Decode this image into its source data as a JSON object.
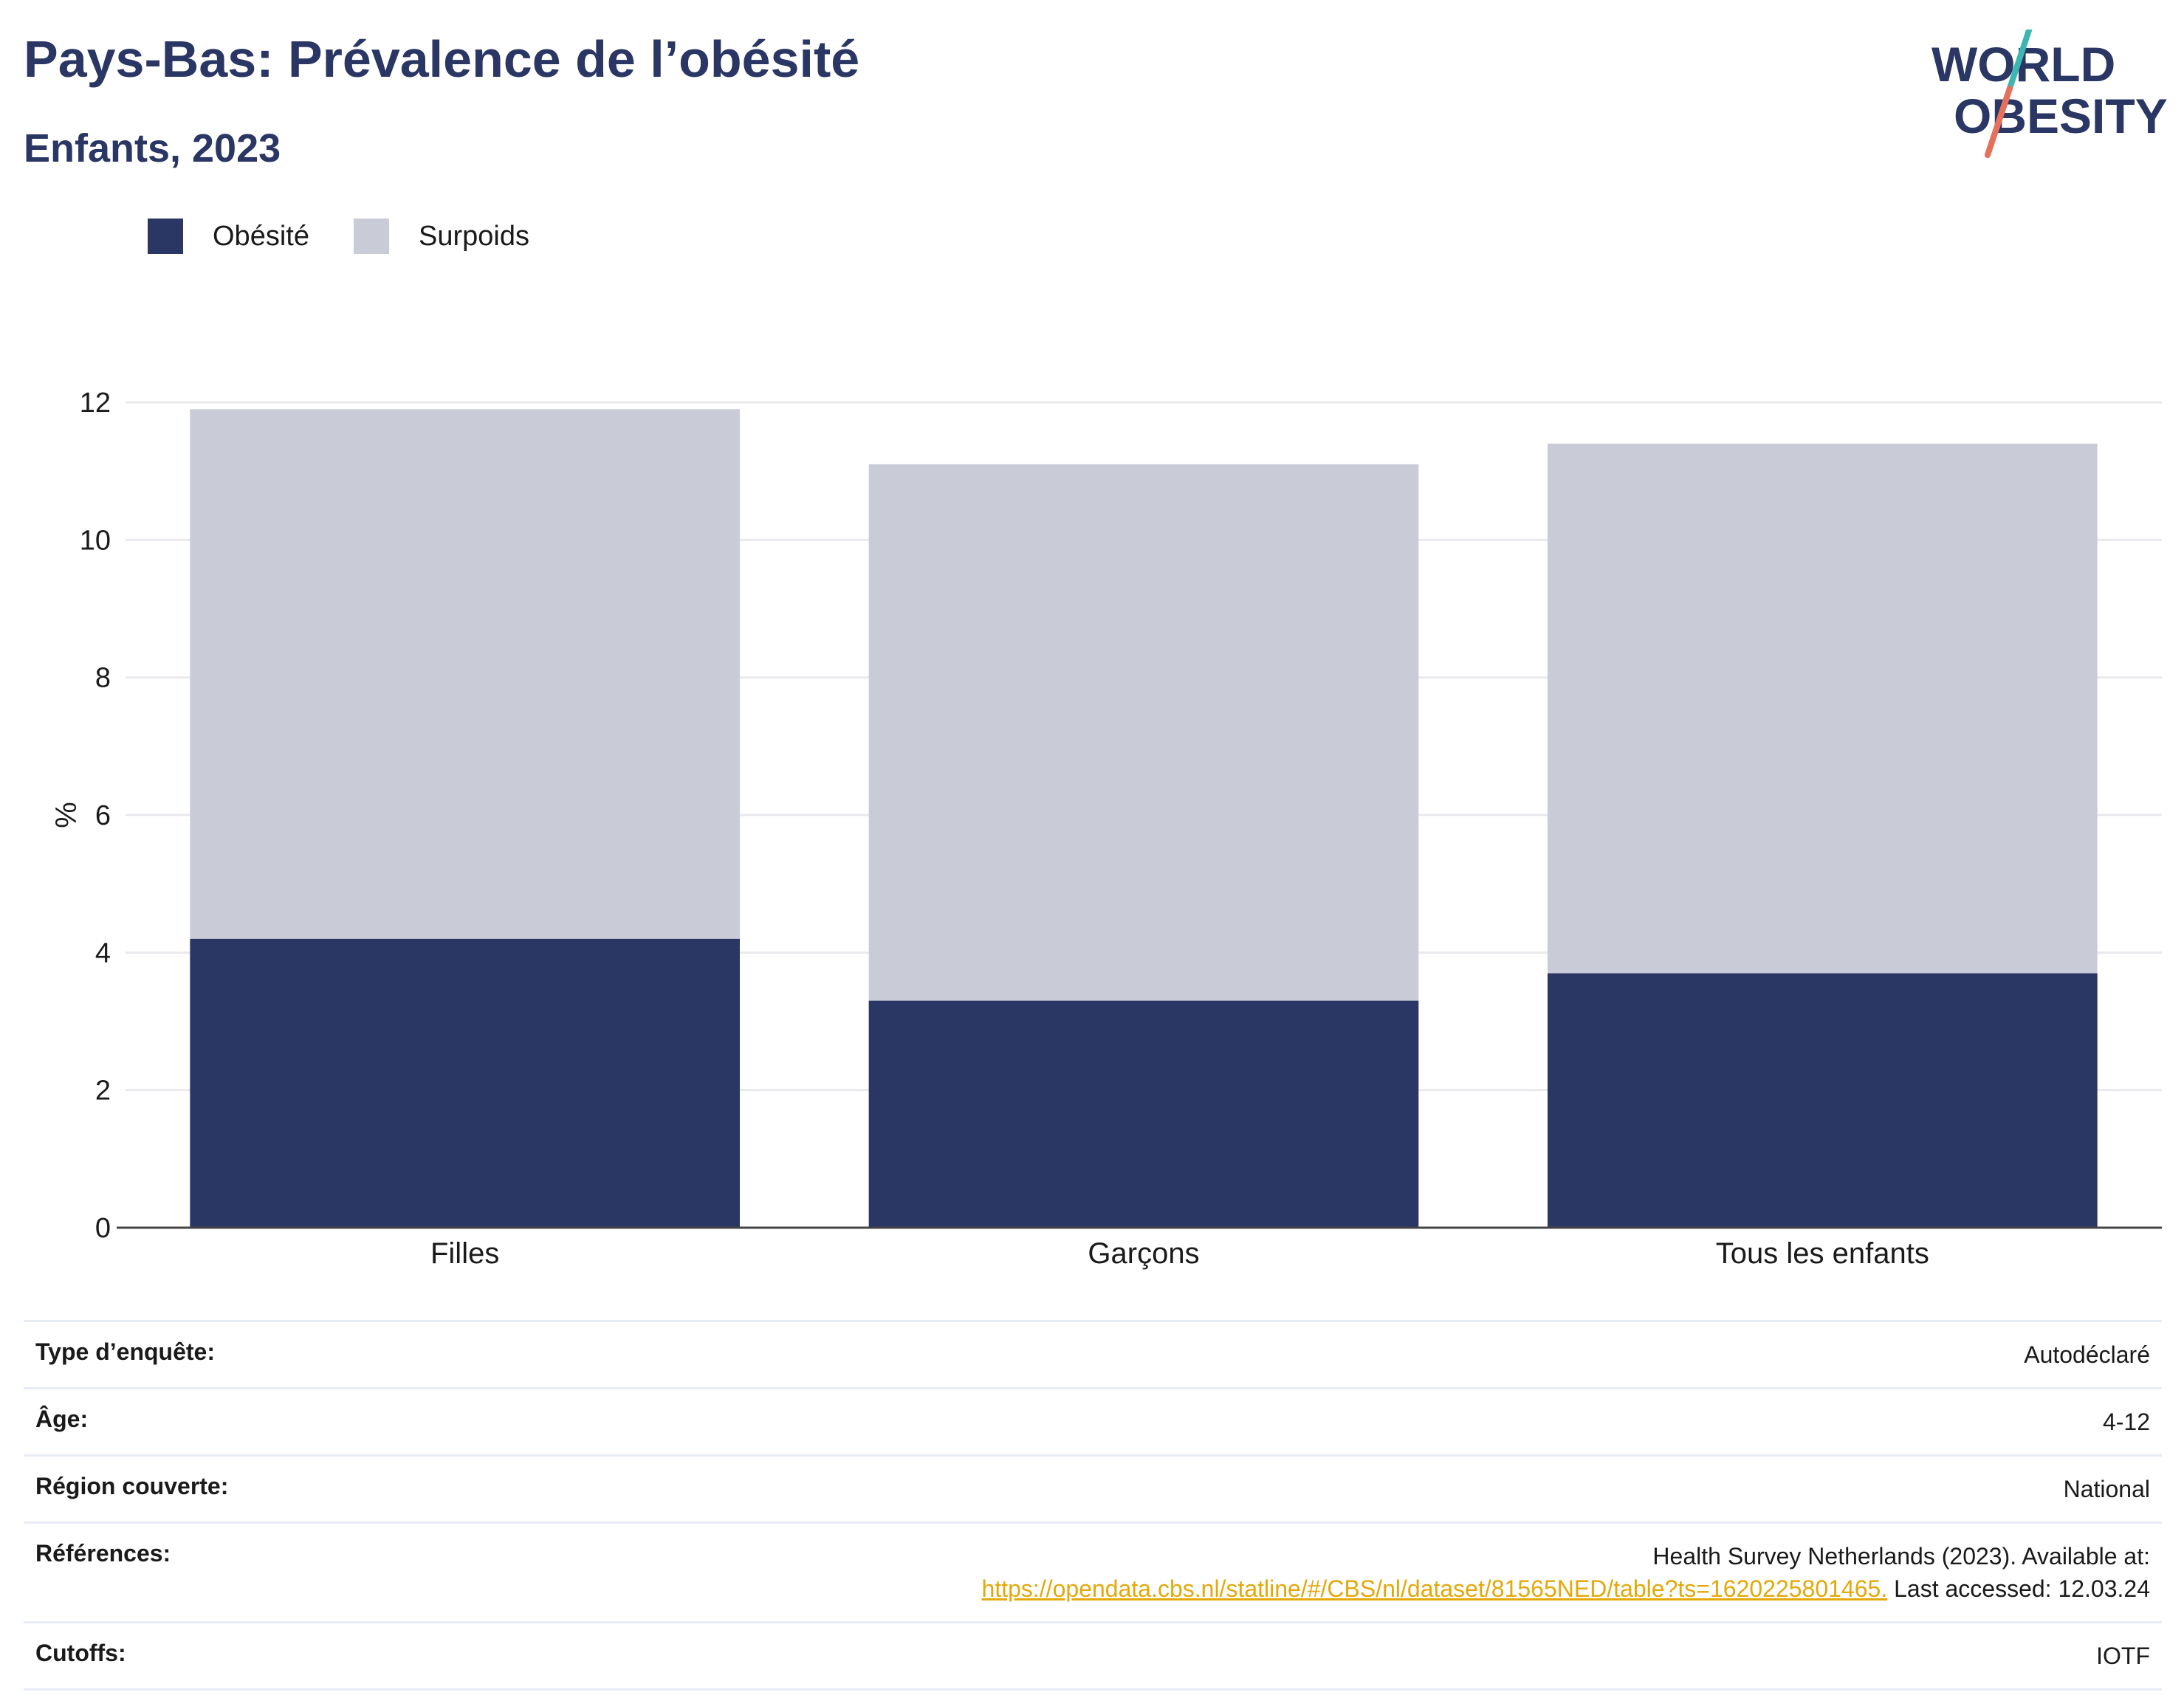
{
  "title": "Pays-Bas: Prévalence de l’obésité",
  "subtitle": "Enfants, 2023",
  "logo": {
    "line1": "WORLD",
    "line2": "OBESITY",
    "colors": {
      "text": "#2a3663",
      "slash_top": "#3cb6b0",
      "slash_bottom": "#e8705a"
    }
  },
  "legend": [
    {
      "label": "Obésité",
      "color": "#2a3663"
    },
    {
      "label": "Surpoids",
      "color": "#c9ccd7"
    }
  ],
  "chart_data": {
    "type": "bar",
    "stacked": true,
    "categories": [
      "Filles",
      "Garçons",
      "Tous les enfants"
    ],
    "series": [
      {
        "name": "Obésité",
        "color": "#2a3663",
        "values": [
          4.2,
          3.3,
          3.7
        ]
      },
      {
        "name": "Surpoids",
        "color": "#c9ccd7",
        "values": [
          7.7,
          7.8,
          7.7
        ]
      }
    ],
    "ylabel": "%",
    "ylim": [
      0,
      12
    ],
    "yticks": [
      0,
      2,
      4,
      6,
      8,
      10,
      12
    ],
    "grid": true
  },
  "info": {
    "survey_type": {
      "label": "Type d’enquête:",
      "value": "Autodéclaré"
    },
    "age": {
      "label": "Âge:",
      "value": "4-12"
    },
    "region": {
      "label": "Région couverte:",
      "value": "National"
    },
    "references": {
      "label": "Références:",
      "line1": "Health Survey Netherlands (2023). Available at:",
      "link": "https://opendata.cbs.nl/statline/#/CBS/nl/dataset/81565NED/table?ts=1620225801465.",
      "suffix": " Last accessed: 12.03.24"
    },
    "cutoffs": {
      "label": "Cutoffs:",
      "value": "IOTF"
    }
  }
}
